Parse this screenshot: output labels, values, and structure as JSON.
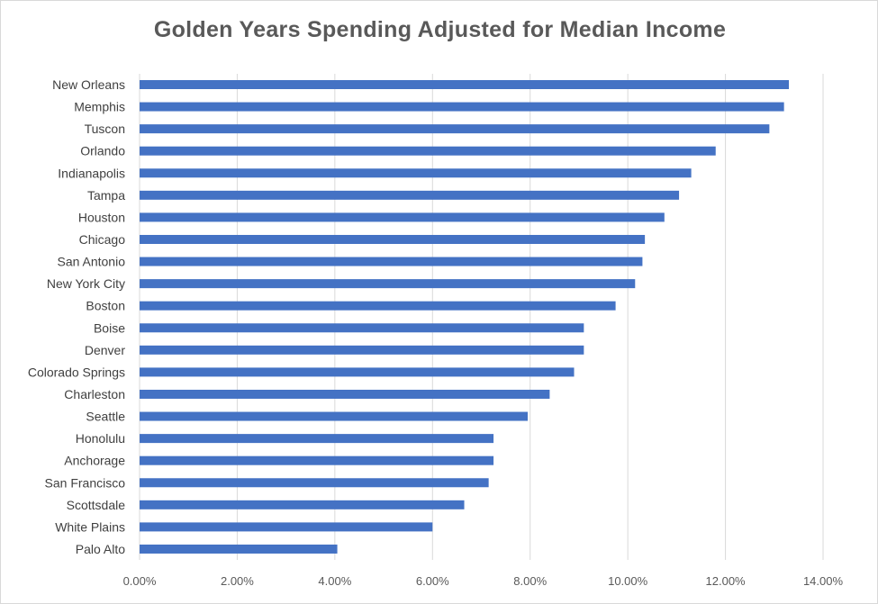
{
  "chart_data": {
    "type": "bar",
    "orientation": "horizontal",
    "title": "Golden Years Spending Adjusted for Median Income",
    "categories": [
      "New Orleans",
      "Memphis",
      "Tuscon",
      "Orlando",
      "Indianapolis",
      "Tampa",
      "Houston",
      "Chicago",
      "San Antonio",
      "New York City",
      "Boston",
      "Boise",
      "Denver",
      "Colorado Springs",
      "Charleston",
      "Seattle",
      "Honolulu",
      "Anchorage",
      "San Francisco",
      "Scottsdale",
      "White Plains",
      "Palo Alto"
    ],
    "values": [
      13.3,
      13.2,
      12.9,
      11.8,
      11.3,
      11.05,
      10.75,
      10.35,
      10.3,
      10.15,
      9.75,
      9.1,
      9.1,
      8.9,
      8.4,
      7.95,
      7.25,
      7.25,
      7.15,
      6.65,
      6.0,
      4.05
    ],
    "xlim": [
      0,
      14
    ],
    "xticks": [
      0,
      2,
      4,
      6,
      8,
      10,
      12,
      14
    ],
    "xtick_labels": [
      "0.00%",
      "2.00%",
      "4.00%",
      "6.00%",
      "8.00%",
      "10.00%",
      "12.00%",
      "14.00%"
    ],
    "grid": true,
    "legend": "none",
    "bar_color": "#4472c4"
  }
}
